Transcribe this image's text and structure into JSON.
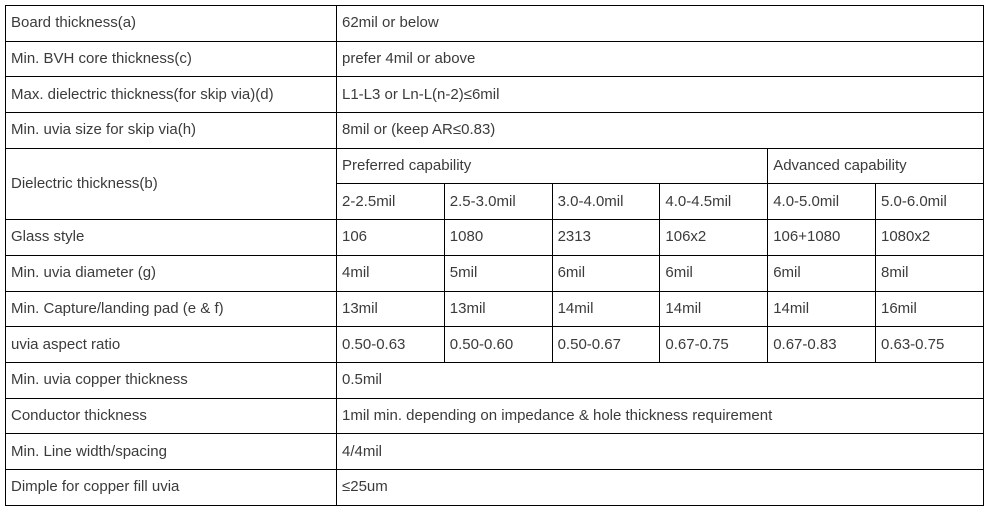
{
  "colors": {
    "border": "#000000",
    "text": "#3b3b3b",
    "background": "#ffffff"
  },
  "table": {
    "top_rows": [
      {
        "label": "Board thickness(a)",
        "value": "62mil or below"
      },
      {
        "label": "Min. BVH core thickness(c)",
        "value": "prefer 4mil or above"
      },
      {
        "label": "Max. dielectric thickness(for skip via)(d)",
        "value": "L1-L3 or Ln-L(n-2)≤6mil"
      },
      {
        "label": "Min. uvia size for skip via(h)",
        "value": "8mil or (keep AR≤0.83)"
      }
    ],
    "dielectric": {
      "label": "Dielectric thickness(b)",
      "preferred_header": "Preferred capability",
      "advanced_header": "Advanced capability",
      "ranges": [
        "2-2.5mil",
        "2.5-3.0mil",
        "3.0-4.0mil",
        "4.0-4.5mil",
        "4.0-5.0mil",
        "5.0-6.0mil"
      ]
    },
    "matrix_rows": [
      {
        "label": "Glass style",
        "values": [
          "106",
          "1080",
          "2313",
          "106x2",
          "106+1080",
          "1080x2"
        ]
      },
      {
        "label": "Min. uvia diameter (g)",
        "values": [
          "4mil",
          "5mil",
          "6mil",
          "6mil",
          "6mil",
          "8mil"
        ]
      },
      {
        "label": "Min. Capture/landing pad (e & f)",
        "values": [
          "13mil",
          "13mil",
          "14mil",
          "14mil",
          "14mil",
          "16mil"
        ]
      },
      {
        "label": "uvia aspect ratio",
        "values": [
          "0.50-0.63",
          "0.50-0.60",
          "0.50-0.67",
          "0.67-0.75",
          "0.67-0.83",
          "0.63-0.75"
        ]
      }
    ],
    "bottom_rows": [
      {
        "label": "Min. uvia copper thickness",
        "value": "0.5mil"
      },
      {
        "label": "Conductor thickness",
        "value": "1mil min. depending on impedance & hole thickness requirement"
      },
      {
        "label": "Min. Line width/spacing",
        "value": "4/4mil"
      },
      {
        "label": "Dimple for copper fill uvia",
        "value": "≤25um"
      }
    ]
  }
}
